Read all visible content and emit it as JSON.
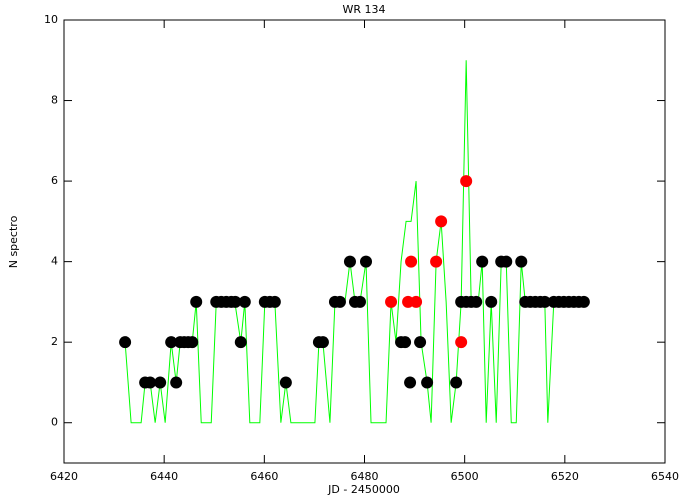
{
  "chart_data": {
    "type": "scatter",
    "title": "WR 134",
    "xlabel": "JD - 2450000",
    "ylabel": "N spectro",
    "xlim": [
      6420,
      6540
    ],
    "xticks": [
      6420,
      6440,
      6460,
      6480,
      6500,
      6520,
      6540
    ],
    "ylim": [
      -1,
      10
    ],
    "yticks": [
      0,
      2,
      4,
      6,
      8,
      10
    ],
    "series": [
      {
        "style": "line",
        "color": "#00ff00",
        "x": [
          6432.2,
          6433.4,
          6435.4,
          6436.2,
          6437.2,
          6438.2,
          6439.2,
          6440.2,
          6441.4,
          6442.4,
          6443.2,
          6445.6,
          6446.4,
          6447.4,
          6449.4,
          6450.4,
          6454.1,
          6455.3,
          6456.1,
          6457.1,
          6459.1,
          6460.1,
          6462.1,
          6463.3,
          6464.3,
          6465.3,
          6470.1,
          6470.9,
          6471.7,
          6473.1,
          6474.1,
          6476.1,
          6477.1,
          6478.1,
          6479.1,
          6480.3,
          6481.3,
          6484.3,
          6485.3,
          6486.3,
          6487.3,
          6488.3,
          6489.3,
          6490.3,
          6491.3,
          6492.5,
          6493.3,
          6494.3,
          6495.3,
          6496.3,
          6497.3,
          6498.3,
          6499.3,
          6500.3,
          6501.3,
          6502.7,
          6503.5,
          6504.3,
          6505.3,
          6506.3,
          6507.3,
          6508.3,
          6509.3,
          6510.3,
          6511.3,
          6512.1,
          6516.0,
          6516.6,
          6517.8,
          6523.8
        ],
        "values": [
          2,
          0,
          0,
          1,
          1,
          0,
          1,
          0,
          2,
          1,
          2,
          2,
          3,
          0,
          0,
          3,
          3,
          2,
          3,
          0,
          0,
          3,
          3,
          0,
          1,
          0,
          0,
          2,
          2,
          0,
          3,
          3,
          4,
          3,
          3,
          4,
          0,
          0,
          3,
          2,
          4,
          5,
          5,
          6,
          2,
          1,
          0,
          4,
          5,
          3,
          0,
          1,
          3,
          9,
          3,
          3,
          4,
          0,
          3,
          0,
          4,
          4,
          0,
          0,
          4,
          3,
          3,
          0,
          3,
          3
        ]
      },
      {
        "style": "marker",
        "color": "#000000",
        "x": [
          6432.2,
          6436.2,
          6437.2,
          6439.2,
          6441.4,
          6442.4,
          6443.2,
          6444.0,
          6444.8,
          6445.6,
          6446.4,
          6450.4,
          6451.4,
          6452.4,
          6453.4,
          6454.2,
          6455.3,
          6456.1,
          6460.1,
          6461.1,
          6462.1,
          6464.3,
          6470.9,
          6471.7,
          6474.1,
          6475.1,
          6477.1,
          6478.1,
          6479.1,
          6480.3,
          6487.3,
          6488.1,
          6489.1,
          6491.1,
          6492.5,
          6498.3,
          6499.3,
          6500.3,
          6501.3,
          6502.3,
          6503.5,
          6505.3,
          6507.3,
          6508.3,
          6511.3,
          6512.1,
          6513.1,
          6514.1,
          6515.1,
          6516.0,
          6517.8,
          6518.8,
          6519.8,
          6520.8,
          6521.8,
          6522.8,
          6523.8
        ],
        "values": [
          2,
          1,
          1,
          1,
          2,
          1,
          2,
          2,
          2,
          2,
          3,
          3,
          3,
          3,
          3,
          3,
          2,
          3,
          3,
          3,
          3,
          1,
          2,
          2,
          3,
          3,
          4,
          3,
          3,
          4,
          2,
          2,
          1,
          2,
          1,
          1,
          3,
          3,
          3,
          3,
          4,
          3,
          4,
          4,
          4,
          3,
          3,
          3,
          3,
          3,
          3,
          3,
          3,
          3,
          3,
          3,
          3
        ]
      },
      {
        "style": "marker",
        "color": "#ff0000",
        "x": [
          6485.3,
          6488.7,
          6490.3,
          6489.3,
          6494.3,
          6495.3,
          6500.3,
          6499.3
        ],
        "values": [
          3,
          3,
          3,
          4,
          4,
          5,
          6,
          2
        ]
      }
    ]
  }
}
